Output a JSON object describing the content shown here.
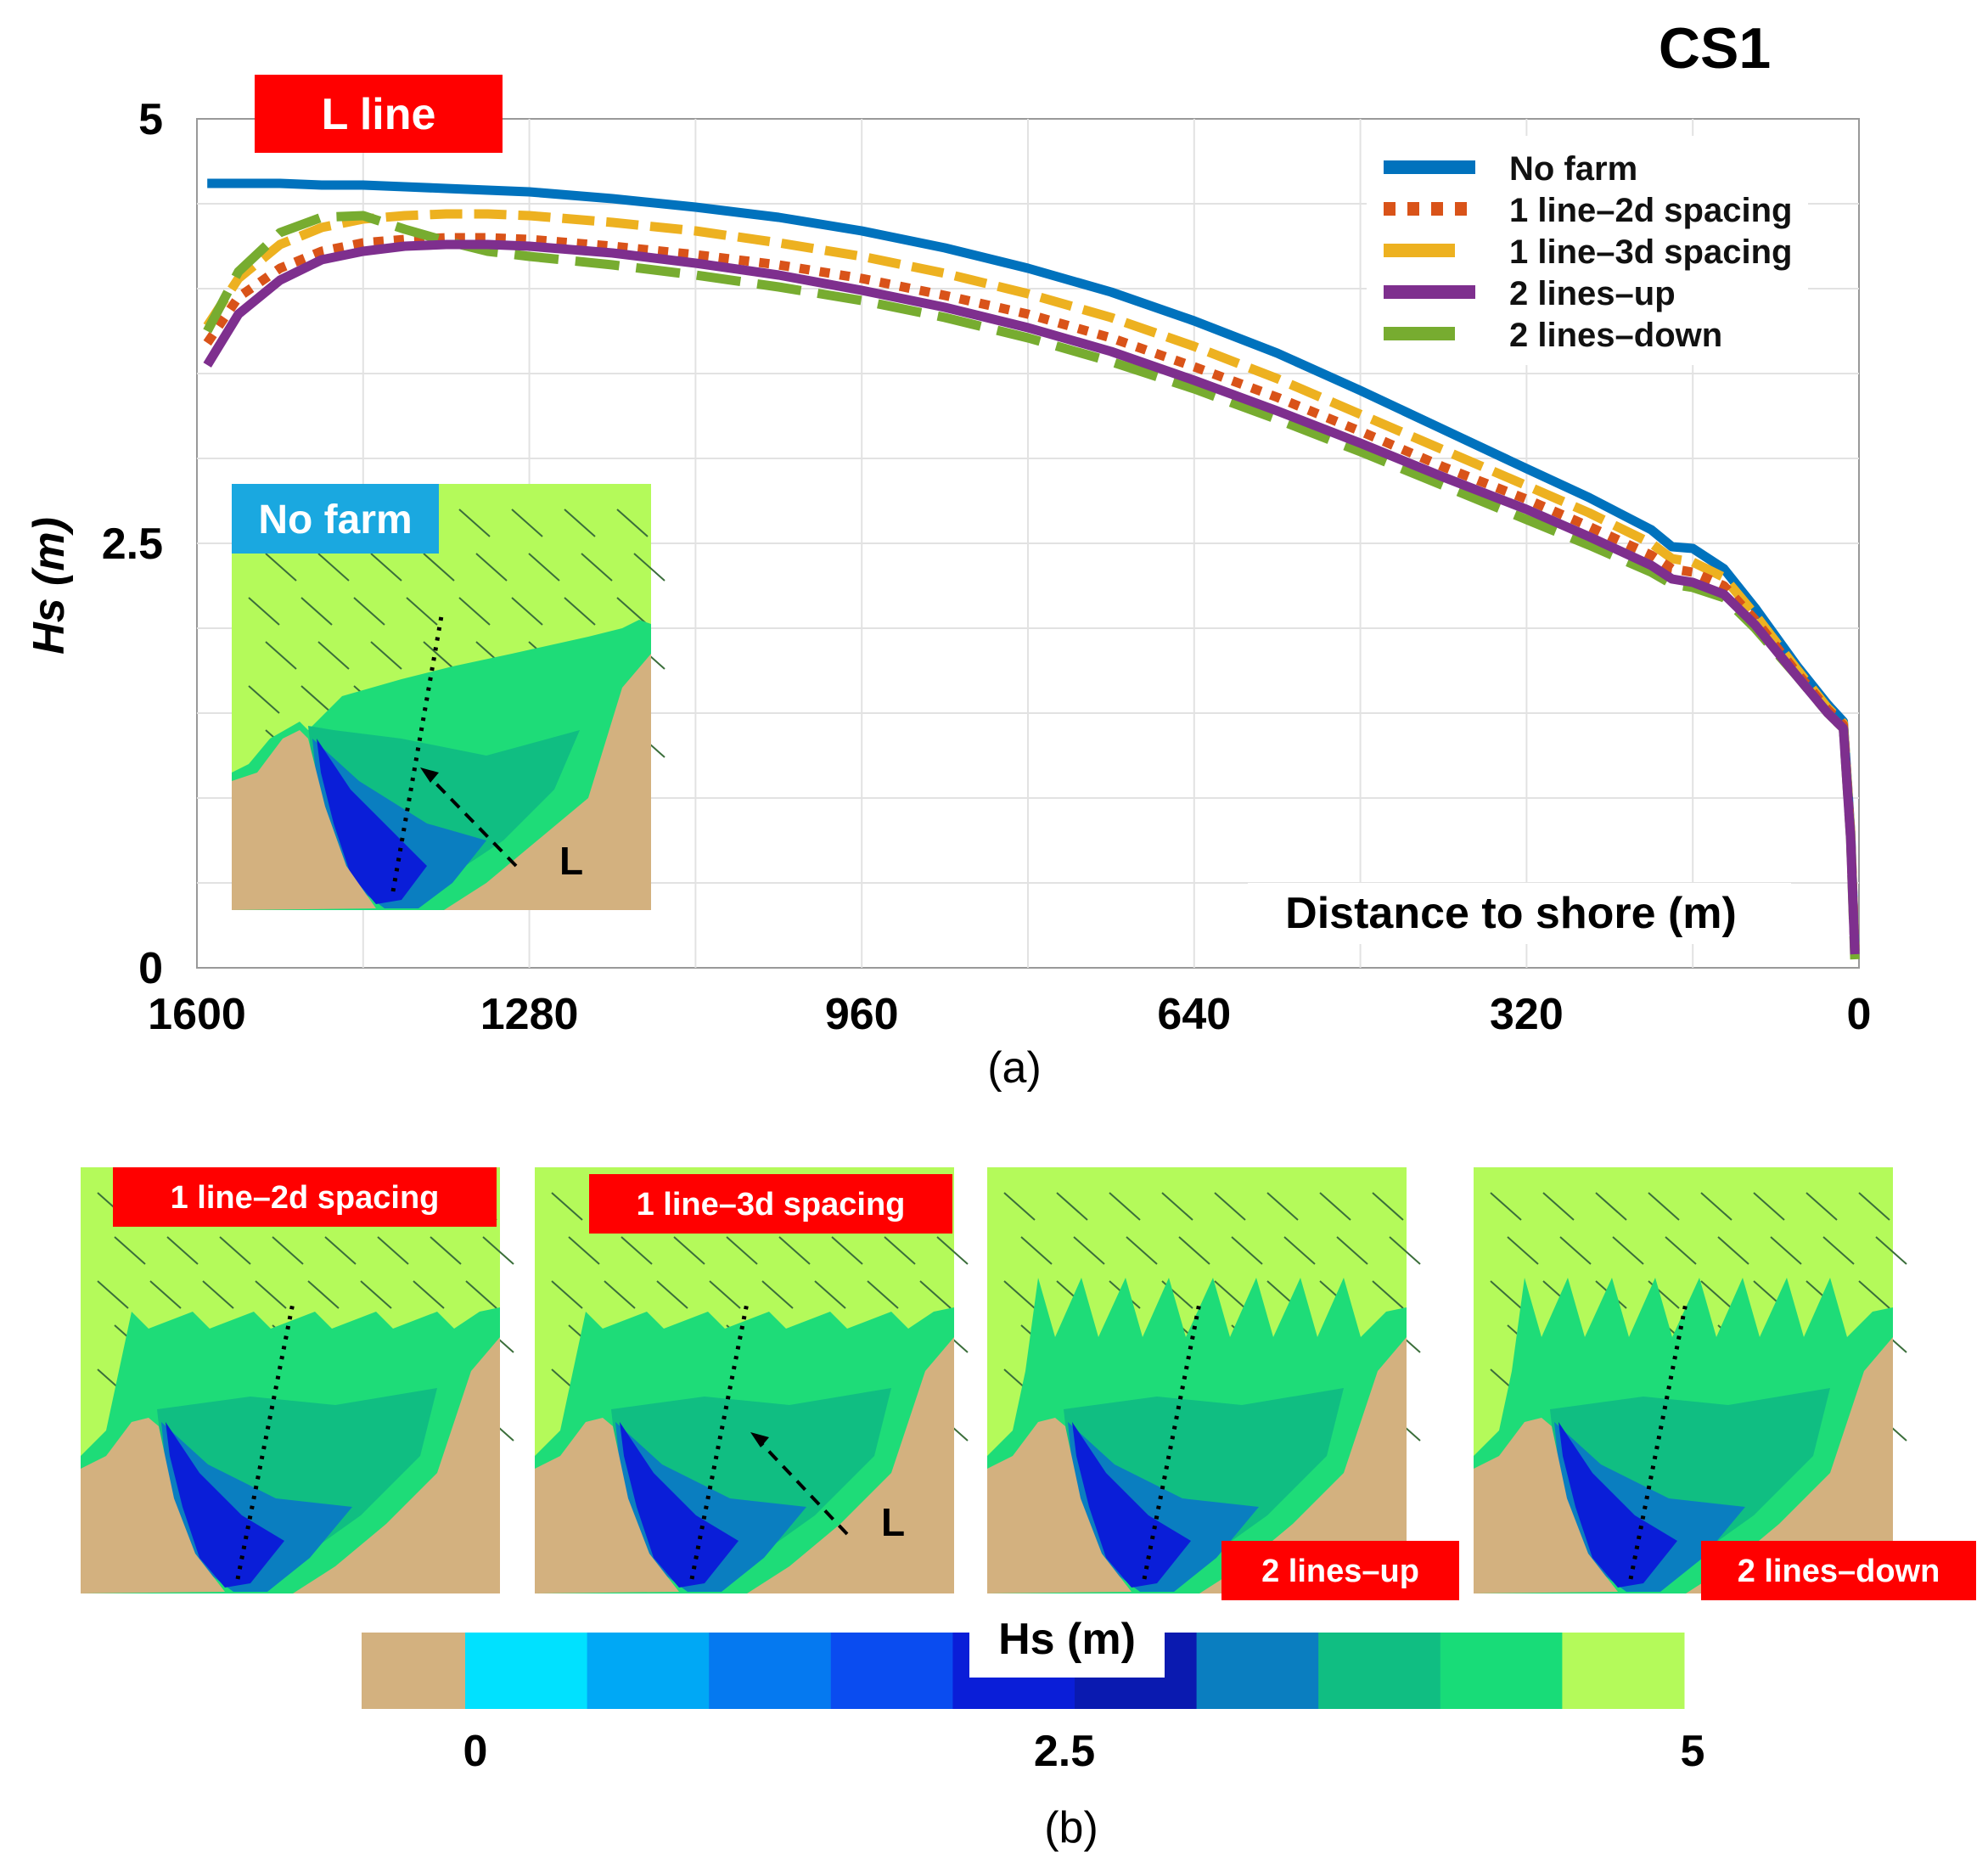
{
  "figure": {
    "corner_label": "CS1",
    "line_badge": "L line",
    "panel_a_label": "(a)",
    "panel_b_label": "(b)"
  },
  "chart_data": {
    "type": "line",
    "title": "CS1",
    "xlabel": "Distance to shore (m)",
    "ylabel": "Hs (m)",
    "xlim": [
      1600,
      0
    ],
    "ylim": [
      0,
      5
    ],
    "x_ticks": [
      1600,
      1280,
      960,
      640,
      320,
      0
    ],
    "y_ticks": [
      0,
      2.5,
      5
    ],
    "grid": true,
    "legend_position": "top-right",
    "x": [
      1590,
      1560,
      1520,
      1480,
      1440,
      1400,
      1360,
      1320,
      1280,
      1200,
      1120,
      1040,
      960,
      880,
      800,
      720,
      640,
      560,
      480,
      400,
      320,
      260,
      200,
      180,
      160,
      130,
      100,
      60,
      30,
      15,
      8,
      4
    ],
    "series": [
      {
        "name": "No farm",
        "color": "#0072BD",
        "dash": "solid",
        "values": [
          4.62,
          4.62,
          4.62,
          4.61,
          4.61,
          4.6,
          4.59,
          4.58,
          4.57,
          4.53,
          4.48,
          4.42,
          4.34,
          4.24,
          4.12,
          3.98,
          3.81,
          3.62,
          3.4,
          3.17,
          2.94,
          2.77,
          2.58,
          2.48,
          2.47,
          2.35,
          2.12,
          1.78,
          1.55,
          1.45,
          0.8,
          0.1
        ]
      },
      {
        "name": "1 line–2d spacing",
        "color": "#D95319",
        "dash": "dot",
        "values": [
          3.68,
          3.95,
          4.12,
          4.22,
          4.27,
          4.29,
          4.3,
          4.3,
          4.29,
          4.25,
          4.2,
          4.14,
          4.06,
          3.96,
          3.85,
          3.71,
          3.54,
          3.36,
          3.16,
          2.95,
          2.76,
          2.6,
          2.43,
          2.35,
          2.33,
          2.25,
          2.05,
          1.74,
          1.52,
          1.43,
          0.78,
          0.1
        ]
      },
      {
        "name": "1 line–3d spacing",
        "color": "#EDB120",
        "dash": "dash",
        "values": [
          3.78,
          4.06,
          4.26,
          4.36,
          4.41,
          4.43,
          4.44,
          4.44,
          4.43,
          4.39,
          4.34,
          4.27,
          4.19,
          4.09,
          3.97,
          3.83,
          3.66,
          3.47,
          3.26,
          3.05,
          2.84,
          2.68,
          2.5,
          2.41,
          2.39,
          2.3,
          2.08,
          1.76,
          1.53,
          1.44,
          0.79,
          0.1
        ]
      },
      {
        "name": "2 lines–up",
        "color": "#7E2F8E",
        "dash": "solid",
        "values": [
          3.55,
          3.85,
          4.05,
          4.17,
          4.22,
          4.25,
          4.26,
          4.26,
          4.25,
          4.21,
          4.15,
          4.08,
          3.99,
          3.89,
          3.77,
          3.63,
          3.46,
          3.28,
          3.09,
          2.89,
          2.7,
          2.54,
          2.37,
          2.29,
          2.27,
          2.2,
          2.02,
          1.72,
          1.5,
          1.41,
          0.76,
          0.08
        ]
      },
      {
        "name": "2 lines–down",
        "color": "#77AC30",
        "dash": "longdash",
        "values": [
          3.75,
          4.1,
          4.33,
          4.42,
          4.43,
          4.35,
          4.28,
          4.22,
          4.19,
          4.14,
          4.08,
          4.01,
          3.93,
          3.83,
          3.71,
          3.57,
          3.41,
          3.23,
          3.04,
          2.84,
          2.64,
          2.49,
          2.33,
          2.26,
          2.24,
          2.18,
          2.0,
          1.72,
          1.5,
          1.41,
          0.76,
          0.05
        ]
      }
    ]
  },
  "inset": {
    "label": "No farm",
    "line_label": "L"
  },
  "maps": [
    {
      "label": "1 line–2d spacing",
      "line_label": ""
    },
    {
      "label": "1 line–3d spacing",
      "line_label": "L"
    },
    {
      "label": "2 lines–up",
      "line_label": ""
    },
    {
      "label": "2 lines–down",
      "line_label": ""
    }
  ],
  "colorbar": {
    "title": "Hs (m)",
    "tick_labels": [
      "0",
      "2.5",
      "5"
    ],
    "land_color": "#D3B17F",
    "colors": [
      "#00E1FF",
      "#00A8F5",
      "#0579F0",
      "#0A4CF0",
      "#0A1ED8",
      "#0A1AB0",
      "#0A7EC0",
      "#10BE82",
      "#18DC78",
      "#B4FA5A"
    ]
  }
}
